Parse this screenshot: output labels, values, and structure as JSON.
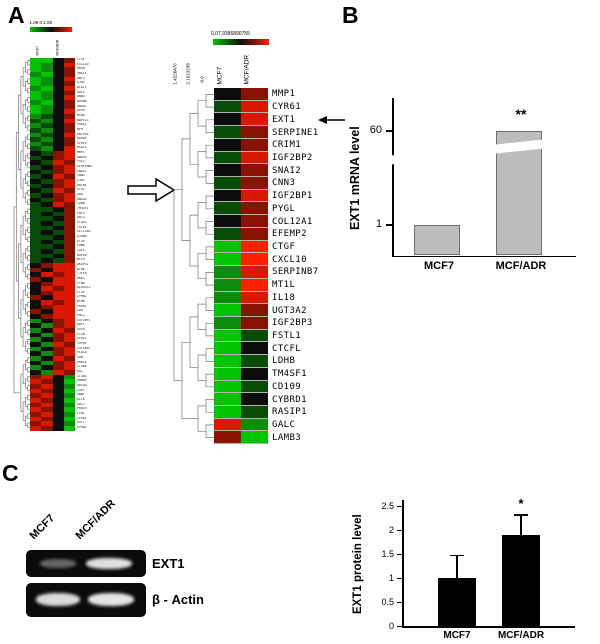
{
  "figure": {
    "panel_a_label": "A",
    "panel_b_label": "B",
    "panel_c_label": "C"
  },
  "palette": {
    "G": "#00c400",
    "g": "#0e8c0e",
    "d": "#074d07",
    "k": "#0d0d0d",
    "r": "#8a1200",
    "R": "#d81800",
    "B": "#ff2000"
  },
  "panel_a": {
    "left_heatmap": {
      "scale_text": "-1.08  0  1.08",
      "column_labels": [
        "MCF7",
        "MCF/ADR"
      ],
      "genes": [
        "CTGF",
        "CXCL10",
        "HMGB",
        "SNG11",
        "ANT3",
        "GJA1",
        "BCAT1",
        "GALE",
        "GNB4",
        "AGRB0",
        "ANG01",
        "ASPH",
        "MXRA",
        "NAP1L3",
        "PRKG2",
        "NPR",
        "ENTPD4",
        "HOXA9",
        "SPRY4",
        "HSDC1",
        "MMP1",
        "ANXA3",
        "FGF2",
        "SERPINB2",
        "SNA12",
        "CNN3",
        "C3HC",
        "ABCB1",
        "ETS1",
        "GDA",
        "ANXA5",
        "LDHB",
        "TM4SF1",
        "CMIP",
        "A0C2",
        "STAG3",
        "TGFBI",
        "SLC13A5",
        "AJUBA",
        "ETV4",
        "PAW8",
        "COL5",
        "MAP1B",
        "MYL9",
        "AKAP12",
        "BCHE",
        "TJP10",
        "DKK3",
        "FLNA",
        "ALOX5L2",
        "ETV5",
        "LPHN2",
        "MCM6",
        "PRG01",
        "CDA",
        "PHL2",
        "IGF2BP1",
        "ABP1",
        "EGFR",
        "S13B",
        "UCHL1",
        "CRYM1",
        "IGF2BP2",
        "PLAC8",
        "JUN",
        "PRKCA",
        "ITGA6",
        "AXL",
        "ITGA5",
        "GNMAP",
        "ARL4D",
        "CAV1",
        "GNM1",
        "KLF6",
        "GDC2",
        "PROCR",
        "FLNC",
        "CYR61",
        "EXT1",
        "EPHA2"
      ],
      "rows": [
        "GGkr",
        "GgkR",
        "Ggkr",
        "gGkr",
        "GgkR",
        "Ggkr",
        "gGkR",
        "Ggkr",
        "GgkR",
        "gGkr",
        "Ggkr",
        "GgkR",
        "gdkr",
        "dgkR",
        "gdkr",
        "dgkr",
        "gdkR",
        "dgkr",
        "gdkr",
        "dgkR",
        "kdrR",
        "dkrR",
        "kdRr",
        "dkrR",
        "kdrR",
        "dkRr",
        "kdrR",
        "dkrR",
        "kdRr",
        "dkrR",
        "kdrR",
        "dkRr",
        "ddkr",
        "dkdr",
        "ddkr",
        "dkdr",
        "ddkr",
        "dkdr",
        "ddkr",
        "dkdr",
        "ddkr",
        "dkdr",
        "ddkr",
        "dkdr",
        "krRR",
        "rkRR",
        "kRrR",
        "rkRR",
        "krRR",
        "kRrR",
        "krRR",
        "rkRR",
        "kRrR",
        "krRR",
        "rkRR",
        "krRR",
        "gkrR",
        "kgrR",
        "gkRr",
        "kgrR",
        "gkrR",
        "kgRr",
        "gkrR",
        "kgrR",
        "gkRr",
        "kgrR",
        "gkrR",
        "kgRr",
        "rRkg",
        "RrkG",
        "rRkg",
        "RrkG",
        "rRkg",
        "RrkG",
        "rRkg",
        "RrkG",
        "rRkg",
        "RrkG",
        "rRkg",
        "RrkG"
      ]
    },
    "right_heatmap": {
      "scale_text": "0,07,9386890755",
      "axis_values": [
        "1.4226476",
        "2.1613238",
        "0.0"
      ],
      "column_labels": [
        "MCF7",
        "MCF/ADR"
      ],
      "arrow_gene": "EXT1",
      "rows": [
        [
          "MMP1",
          "kr"
        ],
        [
          "CYR61",
          "dR"
        ],
        [
          "EXT1",
          "kR"
        ],
        [
          "SERPINE1",
          "dr"
        ],
        [
          "CRIM1",
          "kr"
        ],
        [
          "IGF2BP2",
          "dR"
        ],
        [
          "SNAI2",
          "kr"
        ],
        [
          "CNN3",
          "dr"
        ],
        [
          "IGF2BP1",
          "kR"
        ],
        [
          "PYGL",
          "dr"
        ],
        [
          "COL12A1",
          "kr"
        ],
        [
          "EFEMP2",
          "dr"
        ],
        [
          "CTGF",
          "GB"
        ],
        [
          "CXCL10",
          "GB"
        ],
        [
          "SERPINB7",
          "gR"
        ],
        [
          "MT1L",
          "gB"
        ],
        [
          "IL18",
          "gR"
        ],
        [
          "UGT3A2",
          "Gr"
        ],
        [
          "IGF2BP3",
          "gr"
        ],
        [
          "FSTL1",
          "Gd"
        ],
        [
          "CTCFL",
          "Gk"
        ],
        [
          "LDHB",
          "Gd"
        ],
        [
          "TM4SF1",
          "Gk"
        ],
        [
          "CD109",
          "Gd"
        ],
        [
          "CYBRD1",
          "Gk"
        ],
        [
          "RASIP1",
          "Gd"
        ],
        [
          "GALC",
          "Rg"
        ],
        [
          "LAMB3",
          "rG"
        ]
      ]
    }
  },
  "panel_c": {
    "blot": {
      "lane_labels": [
        "MCF7",
        "MCF/ADR"
      ],
      "rows": [
        {
          "label": "EXT1",
          "intensities": [
            0.4,
            0.95
          ]
        },
        {
          "label": "β - Actin",
          "intensities": [
            0.92,
            0.97
          ]
        }
      ]
    }
  },
  "chart_data": [
    {
      "id": "ext1_mrna",
      "type": "bar",
      "ylabel": "EXT1 mRNA level",
      "categories": [
        "MCF7",
        "MCF/ADR"
      ],
      "values": [
        1,
        60
      ],
      "yticks": [
        "1",
        "60"
      ],
      "axis_break": true,
      "significance": [
        "",
        "**"
      ],
      "bar_color": "#bdbdbd"
    },
    {
      "id": "ext1_protein",
      "type": "bar",
      "ylabel": "EXT1 protein level",
      "categories": [
        "MCF7",
        "MCF/ADR"
      ],
      "values": [
        1.0,
        1.9
      ],
      "errors": [
        0.45,
        0.4
      ],
      "yticks": [
        "0",
        "0.5",
        "1",
        "1.5",
        "2",
        "2.5"
      ],
      "ylim": [
        0,
        2.5
      ],
      "significance": [
        "",
        "*"
      ],
      "bar_color": "#000000"
    }
  ]
}
